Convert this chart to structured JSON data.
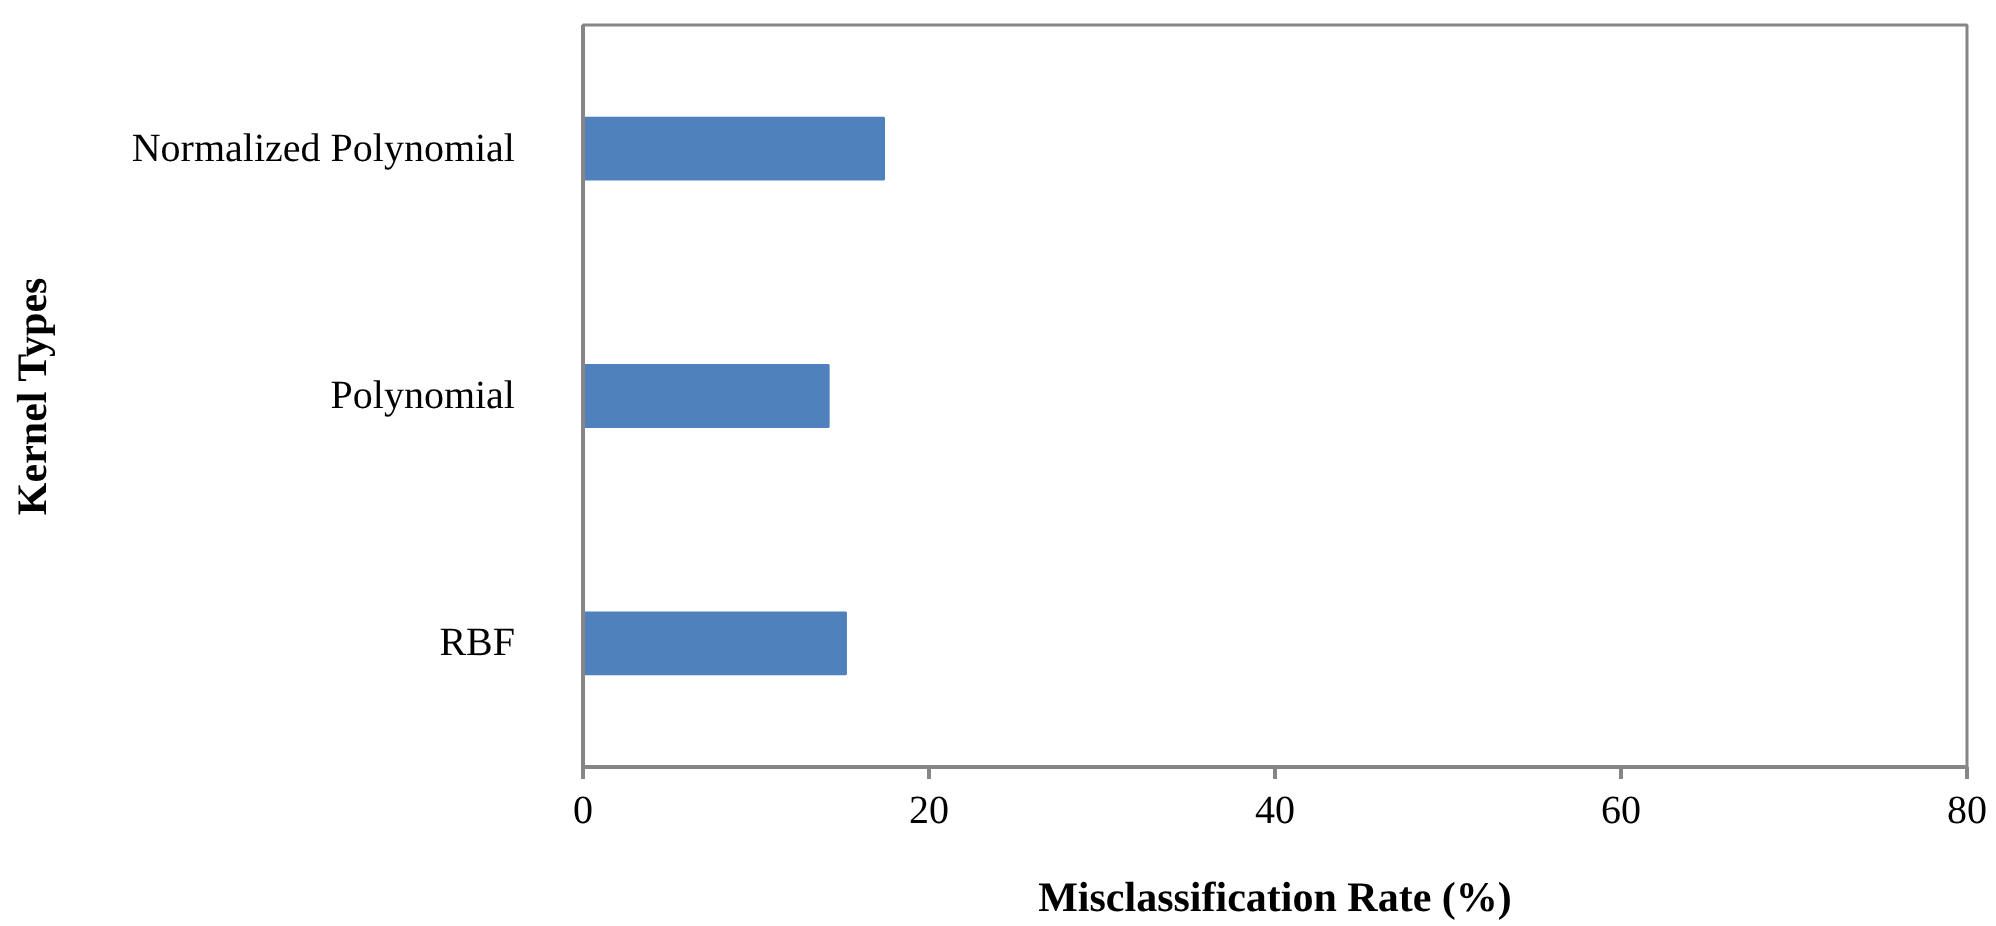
{
  "chart_data": {
    "type": "bar",
    "orientation": "horizontal",
    "categories": [
      "Normalized Polynomial",
      "Polynomial",
      "RBF"
    ],
    "values": [
      17.4,
      14.2,
      15.2
    ],
    "color": "#4f81bd",
    "xlim": [
      0,
      80
    ],
    "xticks": [
      0,
      20,
      40,
      60,
      80
    ],
    "xlabel": "Misclassification Rate (%)",
    "ylabel": "Kernel Types",
    "grid": false
  }
}
